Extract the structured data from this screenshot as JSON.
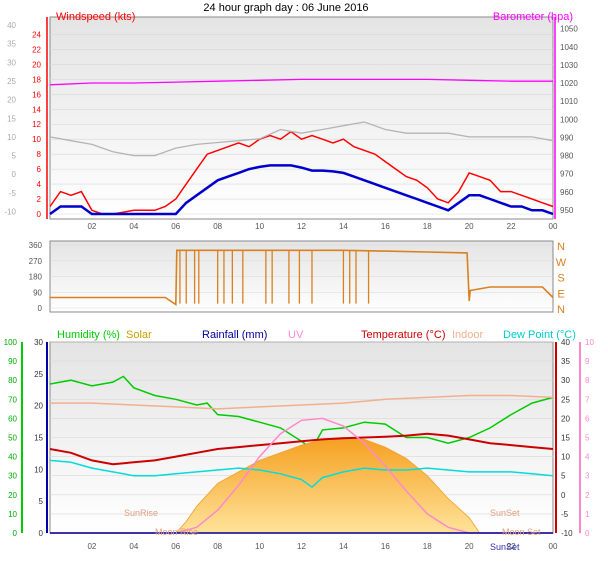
{
  "title": "24 hour graph day : 06 June 2016",
  "colors": {
    "wind": "#ff0000",
    "wind_avg": "#0000cc",
    "gust_gray": "#b4b4b4",
    "baro": "#ff00ff",
    "dir": "#d98020",
    "humidity": "#00cc00",
    "solar": "#f5b030",
    "solar_title": "#c8a000",
    "rain": "#000099",
    "uv": "#ff88cc",
    "temperature": "#cc0000",
    "indoor": "#f0b090",
    "dewpoint": "#00dddd",
    "rain_axis": "#0000aa",
    "ticks": "#555555"
  },
  "chart_data": [
    {
      "type": "line",
      "name": "wind_baro",
      "left_title": "Windspeed (kts)",
      "right_title": "Barometer (hpa)",
      "left_axis_red": {
        "ticks": [
          24,
          22,
          20,
          18,
          16,
          14,
          12,
          10,
          8,
          6,
          4,
          2,
          0
        ],
        "ylim": [
          0,
          25
        ]
      },
      "left_axis_gray": {
        "ticks": [
          40,
          35,
          30,
          25,
          20,
          15,
          10,
          5,
          0,
          -5,
          -10
        ],
        "ylim": [
          -12,
          40
        ]
      },
      "right_axis": {
        "ticks": [
          1050,
          1040,
          1030,
          1020,
          1010,
          1000,
          990,
          980,
          970,
          960,
          950
        ],
        "ylim": [
          945,
          1052
        ]
      },
      "x_ticks": [
        "02",
        "04",
        "06",
        "08",
        "10",
        "12",
        "14",
        "16",
        "18",
        "20",
        "22",
        "00"
      ],
      "xlim": [
        0,
        24
      ],
      "series": [
        {
          "name": "Windspeed",
          "color_key": "wind",
          "x": [
            0,
            0.5,
            1,
            1.5,
            2,
            2.5,
            3,
            4,
            5,
            5.5,
            6,
            6.5,
            7,
            7.5,
            8,
            8.5,
            9,
            9.5,
            10,
            10.5,
            11,
            11.5,
            12,
            12.5,
            13,
            13.5,
            14,
            14.5,
            15,
            15.5,
            16,
            16.5,
            17,
            17.5,
            18,
            18.5,
            19,
            19.5,
            20,
            20.5,
            21,
            21.5,
            22,
            22.5,
            23,
            23.5,
            24
          ],
          "y": [
            1,
            3,
            2.5,
            3,
            0.5,
            0,
            0,
            0.5,
            0.5,
            1,
            2,
            4,
            6,
            8,
            8.5,
            9,
            9.5,
            9,
            10,
            10.5,
            10,
            11,
            10,
            10.5,
            10,
            9.5,
            10,
            9,
            8.5,
            8,
            7,
            6,
            5,
            4.5,
            3.5,
            2,
            1.5,
            3,
            5.5,
            5,
            4.5,
            3,
            3,
            2.5,
            2,
            1.5,
            1
          ]
        },
        {
          "name": "Windspeed average",
          "color_key": "wind_avg",
          "x": [
            0,
            0.5,
            1,
            1.5,
            2,
            2.5,
            3,
            4,
            5,
            5.5,
            6,
            6.5,
            7,
            7.5,
            8,
            8.5,
            9,
            9.5,
            10,
            10.5,
            11,
            11.5,
            12,
            12.5,
            13,
            13.5,
            14,
            14.5,
            15,
            15.5,
            16,
            16.5,
            17,
            17.5,
            18,
            18.5,
            19,
            19.5,
            20,
            20.5,
            21,
            21.5,
            22,
            22.5,
            23,
            23.5,
            24
          ],
          "y": [
            0,
            1,
            1,
            1,
            0,
            0,
            0,
            0,
            0,
            0,
            0,
            1.5,
            2.5,
            3.5,
            4.5,
            5,
            5.5,
            6,
            6.3,
            6.5,
            6.5,
            6.5,
            6.2,
            5.8,
            5.8,
            5.7,
            5.5,
            5,
            4.5,
            4,
            3.5,
            3,
            2.5,
            2,
            1.5,
            1,
            0.5,
            1.5,
            2.5,
            2.5,
            2,
            1.5,
            1,
            1,
            0.5,
            0.5,
            0
          ]
        },
        {
          "name": "Gust",
          "color_key": "gust_gray",
          "axis": "gray",
          "x": [
            0,
            1,
            2,
            3,
            4,
            5,
            6,
            7,
            8,
            9,
            10,
            11,
            12,
            13,
            14,
            15,
            16,
            17,
            18,
            19,
            20,
            21,
            22,
            23,
            24
          ],
          "y": [
            10,
            9,
            8,
            6,
            5,
            5,
            7,
            8,
            8.5,
            9,
            9.5,
            12,
            11,
            12,
            13,
            14,
            12,
            11,
            11,
            11,
            10,
            10,
            10,
            10,
            9
          ]
        },
        {
          "name": "Barometer",
          "color_key": "baro",
          "axis": "right",
          "x": [
            0,
            2,
            4,
            6,
            8,
            10,
            12,
            14,
            16,
            18,
            20,
            22,
            24
          ],
          "y": [
            1019,
            1020,
            1020,
            1020.5,
            1021,
            1021.5,
            1022,
            1022,
            1022,
            1022,
            1021.5,
            1021,
            1021
          ]
        }
      ]
    },
    {
      "type": "line",
      "name": "wind_direction",
      "left_axis": {
        "ticks": [
          360,
          270,
          180,
          90,
          0
        ],
        "ylim": [
          0,
          360
        ]
      },
      "right_labels": [
        "N",
        "W",
        "S",
        "E",
        "N"
      ],
      "xlim": [
        0,
        24
      ],
      "series": [
        {
          "name": "Direction",
          "color_key": "dir",
          "x": [
            0,
            5.5,
            6,
            6.05,
            8,
            10,
            12,
            14,
            16,
            18,
            19.9,
            20,
            20.05,
            21,
            22,
            23.5,
            24
          ],
          "y": [
            60,
            60,
            20,
            330,
            330,
            330,
            330,
            330,
            325,
            320,
            315,
            40,
            100,
            120,
            120,
            120,
            60
          ]
        }
      ]
    },
    {
      "type": "area",
      "name": "temp_hum_solar",
      "legend": {
        "humidity": "Humidity  (%)",
        "solar": "Solar",
        "rainfall": "Rainfall (mm)",
        "uv": "UV",
        "temperature": "Temperature (°C)",
        "indoor": "Indoor",
        "dewpoint": "Dew Point (°C)"
      },
      "annotations": [
        "SunRise",
        "Moon Rise",
        "SunSet",
        "SunSet",
        "Moon Set"
      ],
      "humidity_axis": {
        "ticks": [
          100,
          90,
          80,
          70,
          60,
          50,
          40,
          30,
          20,
          10,
          0
        ],
        "ylim": [
          0,
          100
        ]
      },
      "rain_axis": {
        "ticks": [
          30,
          25,
          20,
          15,
          10,
          5,
          0
        ],
        "ylim": [
          0,
          30
        ]
      },
      "temp_axis": {
        "ticks": [
          40,
          35,
          30,
          25,
          20,
          15,
          10,
          5,
          0,
          -5,
          -10
        ],
        "ylim": [
          -10,
          40
        ]
      },
      "uv_axis": {
        "ticks": [
          10,
          9,
          8,
          7,
          6,
          5,
          4,
          3,
          2,
          1,
          0
        ],
        "ylim": [
          0,
          10
        ]
      },
      "x_ticks": [
        "02",
        "04",
        "06",
        "08",
        "10",
        "12",
        "14",
        "16",
        "18",
        "20",
        "22",
        "00"
      ],
      "xlim": [
        0,
        24
      ],
      "series": [
        {
          "name": "Humidity",
          "color_key": "humidity",
          "axis": "humidity",
          "x": [
            0,
            1,
            2,
            3,
            3.5,
            4,
            5,
            6,
            7,
            7.5,
            8,
            9,
            10,
            11,
            12,
            12.5,
            13,
            14,
            15,
            16,
            17,
            18,
            19,
            20,
            21,
            22,
            23,
            24
          ],
          "y": [
            78,
            80,
            77,
            79,
            82,
            76,
            72,
            70,
            67,
            68,
            62,
            61,
            58,
            55,
            48,
            44,
            54,
            55,
            58,
            57,
            50,
            50,
            47,
            50,
            55,
            62,
            68,
            71
          ]
        },
        {
          "name": "Solar",
          "color_key": "solar",
          "axis": "temperature",
          "x": [
            0,
            6,
            6.5,
            7,
            8,
            9,
            10,
            11,
            12,
            13,
            14,
            15,
            16,
            17,
            18,
            19,
            20,
            20.5,
            24
          ],
          "y": [
            -10,
            -10,
            -7,
            -3,
            3,
            6,
            9,
            11,
            13,
            14.5,
            15,
            14.5,
            12.5,
            9.5,
            5,
            -1,
            -6,
            -10,
            -10
          ]
        },
        {
          "name": "Temperature",
          "color_key": "temperature",
          "axis": "temperature",
          "x": [
            0,
            1,
            2,
            3,
            4,
            5,
            6,
            7,
            8,
            9,
            10,
            11,
            12,
            13,
            14,
            15,
            16,
            17,
            18,
            19,
            20,
            21,
            22,
            23,
            24
          ],
          "y": [
            12,
            11,
            9,
            8,
            8.5,
            9,
            10,
            11,
            12,
            12.5,
            13,
            13.5,
            14,
            14.5,
            14.8,
            15,
            15.2,
            15.5,
            16,
            15.5,
            14.5,
            13.5,
            13,
            12.5,
            12
          ]
        },
        {
          "name": "Indoor",
          "color_key": "indoor",
          "axis": "temperature",
          "x": [
            0,
            2,
            4,
            6,
            8,
            10,
            12,
            14,
            16,
            18,
            20,
            22,
            24
          ],
          "y": [
            24,
            24,
            23.5,
            23,
            22.5,
            23,
            23.5,
            24,
            25,
            25.5,
            26,
            26,
            25.5
          ]
        },
        {
          "name": "Dew Point",
          "color_key": "dewpoint",
          "axis": "temperature",
          "x": [
            0,
            1,
            2,
            3,
            4,
            5,
            6,
            7,
            8,
            9,
            10,
            11,
            12,
            12.5,
            13,
            14,
            15,
            16,
            17,
            18,
            19,
            20,
            21,
            22,
            23,
            24
          ],
          "y": [
            9,
            8.5,
            7,
            6,
            5,
            5,
            5.5,
            6,
            6.5,
            7,
            6.5,
            5.5,
            4,
            2,
            4.5,
            6,
            7,
            6.5,
            6.5,
            7,
            6.5,
            6,
            6,
            6,
            5.5,
            5
          ]
        },
        {
          "name": "UV",
          "color_key": "uv",
          "axis": "uv",
          "x": [
            0,
            6,
            7,
            8,
            9,
            10,
            11,
            12,
            13,
            14,
            15,
            16,
            17,
            18,
            19,
            20,
            24
          ],
          "y": [
            0,
            0,
            0.3,
            1.2,
            2.5,
            4,
            5.2,
            5.9,
            6,
            5.6,
            4.7,
            3.5,
            2.2,
            1,
            0.3,
            0,
            0
          ]
        },
        {
          "name": "Rainfall",
          "color_key": "rain",
          "axis": "rain",
          "x": [
            0,
            24
          ],
          "y": [
            0,
            0
          ]
        }
      ]
    }
  ]
}
